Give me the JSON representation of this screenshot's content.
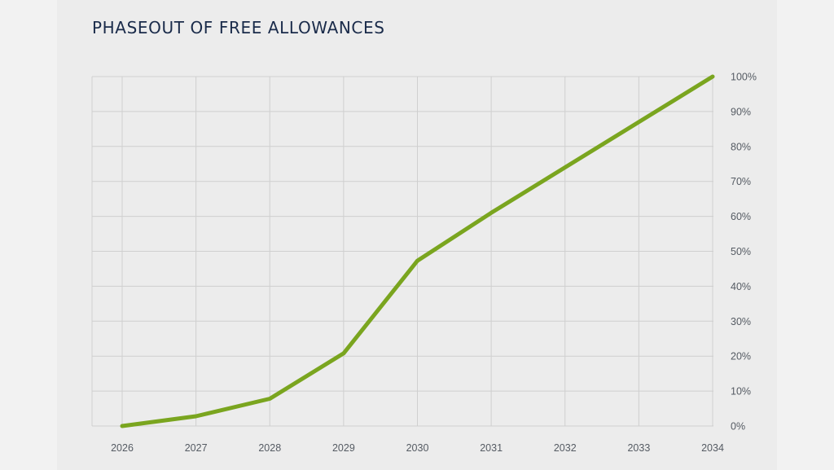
{
  "chart_data": {
    "type": "line",
    "title": "PHASEOUT OF FREE ALLOWANCES",
    "xlabel": "",
    "ylabel": "",
    "x": [
      "2026",
      "2027",
      "2028",
      "2029",
      "2030",
      "2031",
      "2032",
      "2033",
      "2034"
    ],
    "series": [
      {
        "values": [
          0,
          2.8,
          7.8,
          20.8,
          47.3,
          61,
          74,
          87,
          100
        ]
      }
    ],
    "ylim": [
      0,
      100
    ],
    "y_ticks": [
      "0%",
      "10%",
      "20%",
      "30%",
      "40%",
      "50%",
      "60%",
      "70%",
      "80%",
      "90%",
      "100%"
    ],
    "y_axis_side": "right",
    "grid": true,
    "legend": "none",
    "colors": {
      "line": "#7aa51f",
      "grid": "#cfcfcf",
      "axis_text": "#555b63",
      "title": "#1a2b4a",
      "panel_background": "#ececec",
      "page_background": "#f2f2f2"
    }
  }
}
